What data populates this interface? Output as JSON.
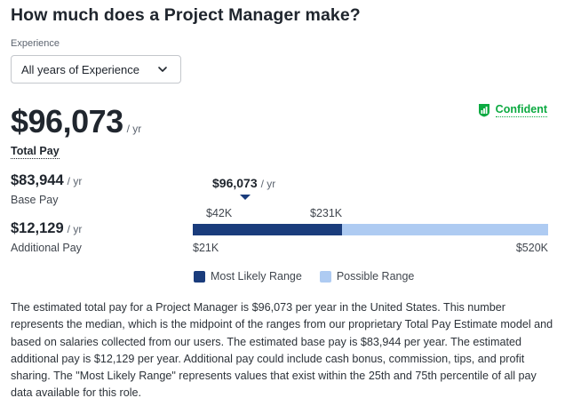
{
  "title": "How much does a Project Manager make?",
  "experience": {
    "label": "Experience",
    "selected": "All years of Experience"
  },
  "confidence": {
    "label": "Confident",
    "color": "#0caa41"
  },
  "total_pay": {
    "amount": "$96,073",
    "unit": "/ yr",
    "label": "Total Pay"
  },
  "base_pay": {
    "amount": "$83,944",
    "unit": "/ yr",
    "label": "Base Pay"
  },
  "additional_pay": {
    "amount": "$12,129",
    "unit": "/ yr",
    "label": "Additional Pay"
  },
  "range_chart": {
    "median": "$96,073",
    "median_unit": "/ yr",
    "median_value": 96073,
    "likely_low": "$42K",
    "likely_high": "$231K",
    "likely_low_value": 42000,
    "likely_high_value": 231000,
    "possible_low": "$21K",
    "possible_high": "$520K",
    "possible_low_value": 21000,
    "possible_high_value": 520000,
    "colors": {
      "likely": "#1a3c7c",
      "possible": "#aecbf2"
    }
  },
  "legend": {
    "likely": "Most Likely Range",
    "possible": "Possible Range"
  },
  "description": "The estimated total pay for a Project Manager is $96,073 per year in the United States. This number represents the median, which is the midpoint of the ranges from our proprietary Total Pay Estimate model and based on salaries collected from our users. The estimated base pay is $83,944 per year. The estimated additional pay is $12,129 per year. Additional pay could include cash bonus, commission, tips, and profit sharing. The \"Most Likely Range\" represents values that exist within the 25th and 75th percentile of all pay data available for this role."
}
